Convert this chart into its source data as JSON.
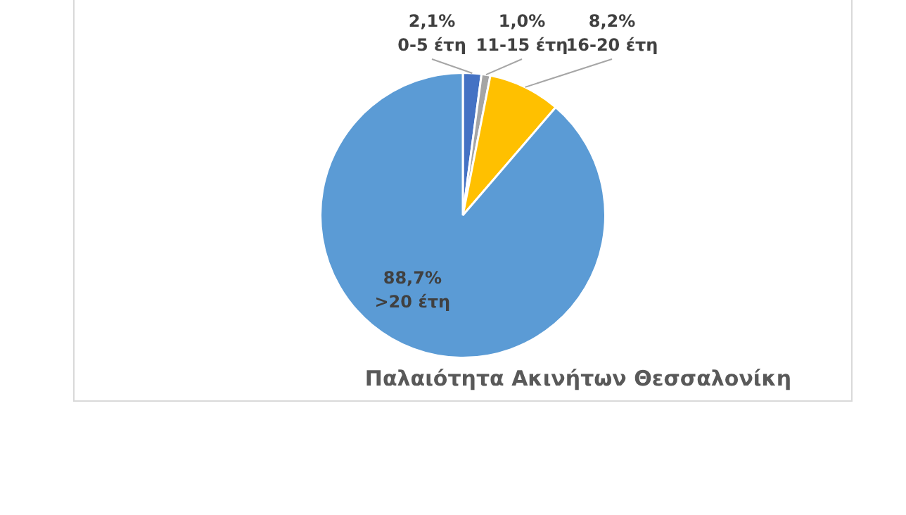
{
  "chart_data": {
    "type": "pie",
    "title": "Παλαιότητα Ακινήτων Θεσσαλονίκη",
    "categories": [
      "0-5 έτη",
      "11-15 έτη",
      "16-20 έτη",
      ">20 έτη"
    ],
    "values": [
      2.1,
      1.0,
      8.2,
      88.7
    ],
    "colors": [
      "#4472c4",
      "#a5a5a5",
      "#ffc000",
      "#5b9bd5"
    ],
    "value_labels": [
      "2,1%",
      "1,0%",
      "8,2%",
      "88,7%"
    ],
    "legend": false
  }
}
